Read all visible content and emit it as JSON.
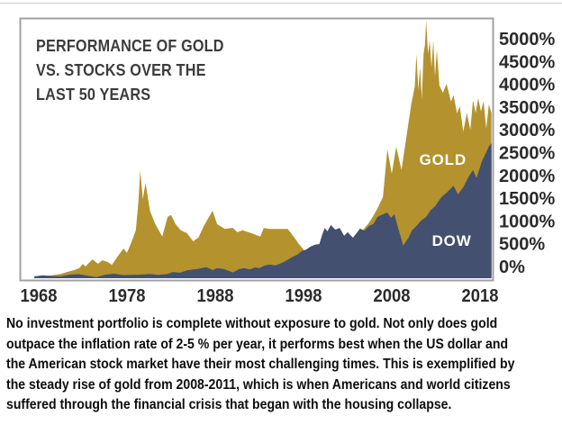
{
  "chart_data": {
    "type": "area",
    "title_lines": [
      "PERFORMANCE OF GOLD",
      "VS. STOCKS OVER THE",
      "LAST 50 YEARS"
    ],
    "x_ticks": [
      "1968",
      "1978",
      "1988",
      "1998",
      "2008",
      "2018"
    ],
    "y_ticks": [
      "5000%",
      "4500%",
      "4000%",
      "3500%",
      "3000%",
      "2500%",
      "2000%",
      "1500%",
      "1000%",
      "500%",
      "0%"
    ],
    "x_range_years": [
      1967.5,
      2019.3
    ],
    "y_range_percent": [
      0,
      5000
    ],
    "grid": false,
    "legend_style": "labels-inside-areas",
    "frame_color": "#a0a0a0",
    "background_color": "#ffffff",
    "axis_text_color": "#2b2b2b",
    "series": [
      {
        "name": "GOLD",
        "color": "#b4922e",
        "label_color": "#ffffff",
        "label_anchor": [
          2013.8,
          2480
        ],
        "points": [
          [
            1967.5,
            20
          ],
          [
            1968.5,
            40
          ],
          [
            1969.5,
            60
          ],
          [
            1970.5,
            90
          ],
          [
            1971.2,
            130
          ],
          [
            1972,
            170
          ],
          [
            1972.6,
            210
          ],
          [
            1973,
            300
          ],
          [
            1973.3,
            245
          ],
          [
            1973.8,
            340
          ],
          [
            1974.1,
            395
          ],
          [
            1974.7,
            300
          ],
          [
            1975.2,
            375
          ],
          [
            1975.8,
            340
          ],
          [
            1976.3,
            280
          ],
          [
            1977,
            470
          ],
          [
            1977.6,
            620
          ],
          [
            1978,
            530
          ],
          [
            1978.5,
            750
          ],
          [
            1979,
            1000
          ],
          [
            1979.3,
            1600
          ],
          [
            1979.5,
            2250
          ],
          [
            1979.8,
            1650
          ],
          [
            1980.1,
            1990
          ],
          [
            1980.6,
            1410
          ],
          [
            1981.2,
            1130
          ],
          [
            1982,
            870
          ],
          [
            1982.6,
            1280
          ],
          [
            1983,
            1320
          ],
          [
            1983.5,
            1130
          ],
          [
            1984.1,
            1000
          ],
          [
            1984.8,
            940
          ],
          [
            1985.5,
            770
          ],
          [
            1986.1,
            850
          ],
          [
            1986.7,
            1090
          ],
          [
            1987.2,
            1250
          ],
          [
            1987.7,
            1410
          ],
          [
            1988.2,
            1130
          ],
          [
            1989.1,
            1030
          ],
          [
            1990,
            1050
          ],
          [
            1990.5,
            960
          ],
          [
            1991.1,
            1000
          ],
          [
            1992.1,
            940
          ],
          [
            1993.1,
            870
          ],
          [
            1993.5,
            1050
          ],
          [
            1994.1,
            1030
          ],
          [
            1996.2,
            1030
          ],
          [
            1996.6,
            940
          ],
          [
            1997.5,
            710
          ],
          [
            1998.5,
            490
          ],
          [
            1999.1,
            395
          ],
          [
            2000,
            340
          ],
          [
            2001,
            300
          ],
          [
            2002,
            380
          ],
          [
            2003,
            550
          ],
          [
            2003.6,
            750
          ],
          [
            2004.2,
            900
          ],
          [
            2004.8,
            1020
          ],
          [
            2005.4,
            1150
          ],
          [
            2006,
            1330
          ],
          [
            2006.5,
            1500
          ],
          [
            2007,
            1700
          ],
          [
            2007.5,
            2690
          ],
          [
            2008,
            2180
          ],
          [
            2008.5,
            2745
          ],
          [
            2009.1,
            2260
          ],
          [
            2009.6,
            2880
          ],
          [
            2010.2,
            3630
          ],
          [
            2010.6,
            4000
          ],
          [
            2010.8,
            4680
          ],
          [
            2011,
            3930
          ],
          [
            2011.2,
            4400
          ],
          [
            2011.4,
            3740
          ],
          [
            2011.6,
            4680
          ],
          [
            2011.75,
            4870
          ],
          [
            2011.9,
            5380
          ],
          [
            2012.1,
            4680
          ],
          [
            2012.3,
            4960
          ],
          [
            2012.5,
            4400
          ],
          [
            2012.7,
            4960
          ],
          [
            2012.9,
            4210
          ],
          [
            2013.1,
            4770
          ],
          [
            2013.4,
            4020
          ],
          [
            2013.8,
            3870
          ],
          [
            2014.2,
            4060
          ],
          [
            2014.7,
            3690
          ],
          [
            2015,
            3820
          ],
          [
            2015.4,
            3440
          ],
          [
            2015.7,
            3590
          ],
          [
            2016.1,
            3060
          ],
          [
            2016.5,
            3450
          ],
          [
            2016.9,
            3100
          ],
          [
            2017.2,
            3720
          ],
          [
            2017.5,
            3450
          ],
          [
            2017.8,
            3760
          ],
          [
            2018.1,
            3480
          ],
          [
            2018.4,
            3700
          ],
          [
            2018.7,
            3120
          ],
          [
            2019,
            3630
          ],
          [
            2019.3,
            3450
          ]
        ]
      },
      {
        "name": "DOW",
        "color": "#43506f",
        "label_color": "#ffffff",
        "label_anchor": [
          2014.8,
          790
        ],
        "points": [
          [
            1967.5,
            40
          ],
          [
            1968.5,
            60
          ],
          [
            1969.5,
            45
          ],
          [
            1970.5,
            40
          ],
          [
            1971.5,
            75
          ],
          [
            1972.5,
            85
          ],
          [
            1973.5,
            55
          ],
          [
            1974.5,
            25
          ],
          [
            1975.5,
            70
          ],
          [
            1976.5,
            95
          ],
          [
            1977.5,
            65
          ],
          [
            1978.5,
            70
          ],
          [
            1979.5,
            75
          ],
          [
            1980.5,
            90
          ],
          [
            1981.5,
            70
          ],
          [
            1982.5,
            85
          ],
          [
            1983.2,
            130
          ],
          [
            1984,
            115
          ],
          [
            1984.9,
            170
          ],
          [
            1985.9,
            190
          ],
          [
            1987,
            230
          ],
          [
            1987.7,
            170
          ],
          [
            1988.2,
            210
          ],
          [
            1989,
            190
          ],
          [
            1990,
            120
          ],
          [
            1990.7,
            190
          ],
          [
            1991.3,
            210
          ],
          [
            1991.9,
            185
          ],
          [
            1992.5,
            225
          ],
          [
            1993,
            210
          ],
          [
            1993.6,
            265
          ],
          [
            1994.2,
            285
          ],
          [
            1994.8,
            265
          ],
          [
            1995.3,
            300
          ],
          [
            1995.8,
            340
          ],
          [
            1996.3,
            395
          ],
          [
            1996.8,
            450
          ],
          [
            1997.3,
            490
          ],
          [
            1997.8,
            565
          ],
          [
            1998.3,
            600
          ],
          [
            1998.8,
            660
          ],
          [
            1999.3,
            700
          ],
          [
            1999.8,
            715
          ],
          [
            2000.1,
            900
          ],
          [
            2000.4,
            1050
          ],
          [
            2000.7,
            980
          ],
          [
            2001.1,
            1110
          ],
          [
            2001.6,
            1015
          ],
          [
            2002.1,
            1050
          ],
          [
            2002.6,
            885
          ],
          [
            2003,
            960
          ],
          [
            2003.6,
            845
          ],
          [
            2004,
            940
          ],
          [
            2004.4,
            1035
          ],
          [
            2004.9,
            995
          ],
          [
            2005.4,
            1090
          ],
          [
            2005.9,
            1130
          ],
          [
            2006.4,
            1280
          ],
          [
            2007,
            1335
          ],
          [
            2007.5,
            1372
          ],
          [
            2007.9,
            1260
          ],
          [
            2008.3,
            1335
          ],
          [
            2008.8,
            1000
          ],
          [
            2009.3,
            680
          ],
          [
            2009.9,
            845
          ],
          [
            2010.3,
            1000
          ],
          [
            2010.8,
            1090
          ],
          [
            2011.3,
            1200
          ],
          [
            2011.9,
            1280
          ],
          [
            2012.4,
            1420
          ],
          [
            2012.9,
            1500
          ],
          [
            2013.6,
            1690
          ],
          [
            2014.3,
            1800
          ],
          [
            2015,
            1930
          ],
          [
            2015.5,
            1750
          ],
          [
            2016.1,
            1900
          ],
          [
            2016.7,
            2120
          ],
          [
            2017.2,
            2260
          ],
          [
            2017.6,
            2090
          ],
          [
            2018.2,
            2440
          ],
          [
            2018.7,
            2630
          ],
          [
            2019,
            2750
          ],
          [
            2019.3,
            2820
          ]
        ]
      }
    ]
  },
  "caption": {
    "lines": [
      "No investment portfolio is complete without exposure to gold. Not only does gold",
      "outpace the inflation rate of 2-5 % per year, it performs best when the US dollar and",
      "the American stock market have their most challenging times. This is exemplified by",
      "the steady rise of gold from 2008-2011, which is when Americans and world citizens",
      "suffered through the financial crisis that began with the housing collapse."
    ]
  }
}
